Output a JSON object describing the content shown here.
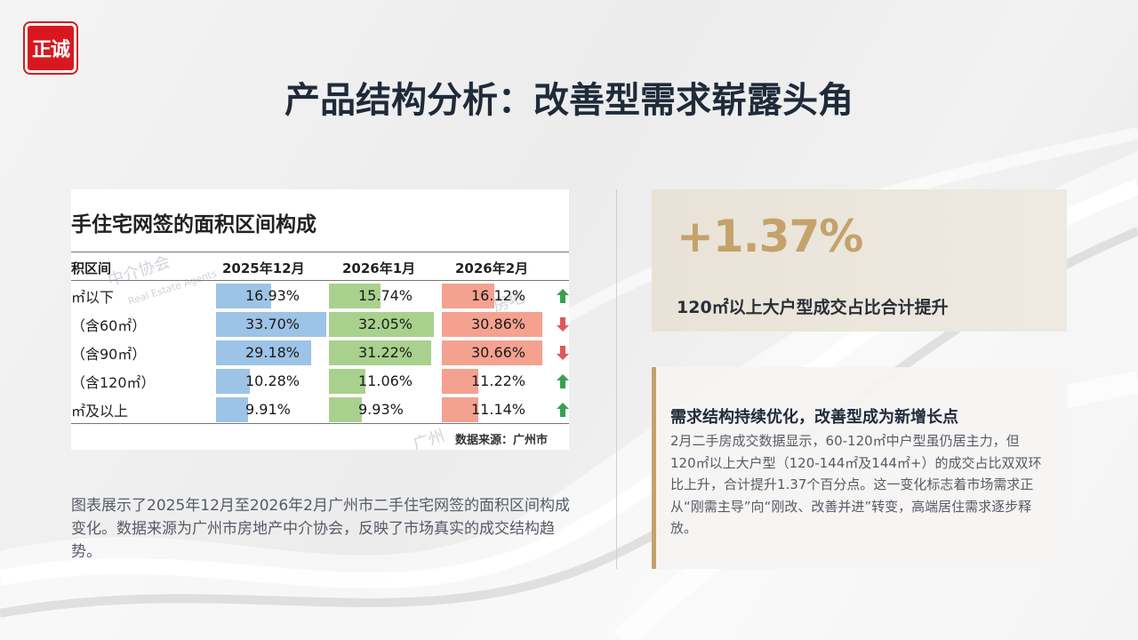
{
  "logo": {
    "text": "正诚"
  },
  "page": {
    "title": "产品结构分析：改善型需求崭露头角"
  },
  "chart_image": {
    "title": "手住宅网签的面积区间构成",
    "col_label": "积区间",
    "periods": [
      "2025年12月",
      "2026年1月",
      "2026年2月"
    ],
    "rows": [
      {
        "label": "㎡以下",
        "v1": "16.93%",
        "v2": "15.74%",
        "v3": "16.12%",
        "trend": "up"
      },
      {
        "label": "（含60㎡）",
        "v1": "33.70%",
        "v2": "32.05%",
        "v3": "30.86%",
        "trend": "down"
      },
      {
        "label": "（含90㎡）",
        "v1": "29.18%",
        "v2": "31.22%",
        "v3": "30.66%",
        "trend": "down"
      },
      {
        "label": "（含120㎡）",
        "v1": "10.28%",
        "v2": "11.06%",
        "v3": "11.22%",
        "trend": "up"
      },
      {
        "label": "㎡及以上",
        "v1": "9.91%",
        "v2": "9.93%",
        "v3": "11.14%",
        "trend": "up"
      }
    ],
    "numbers": [
      [
        16.93,
        15.74,
        16.12
      ],
      [
        33.7,
        32.05,
        30.86
      ],
      [
        29.18,
        31.22,
        30.66
      ],
      [
        10.28,
        11.06,
        11.22
      ],
      [
        9.91,
        9.93,
        11.14
      ]
    ],
    "source": "数据来源：广州市",
    "watermark_1": "中介协会",
    "watermark_2": "Real Estate Agents",
    "watermark_3": "房地",
    "watermark_4": "广州",
    "colors": {
      "col1": "#9dc3e6",
      "col2": "#a9d18e",
      "col3": "#f4a190",
      "up": "#3aa050",
      "down": "#e0565a"
    }
  },
  "description": "图表展示了2025年12月至2026年2月广州市二手住宅网签的面积区间构成变化。数据来源为广州市房地产中介协会，反映了市场真实的成交结构趋势。",
  "stat": {
    "value": "+1.37%",
    "label": "120㎡以上大户型成交占比合计提升"
  },
  "insight": {
    "title": "需求结构持续优化，改善型成为新增长点",
    "body": "2月二手房成交数据显示，60-120㎡中户型虽仍居主力，但120㎡以上大户型（120-144㎡及144㎡+）的成交占比双双环比上升，合计提升1.37个百分点。这一变化标志着市场需求正从“刚需主导”向“刚改、改善并进”转变，高端居住需求逐步释放。"
  },
  "accent_color": "#c4a26c"
}
